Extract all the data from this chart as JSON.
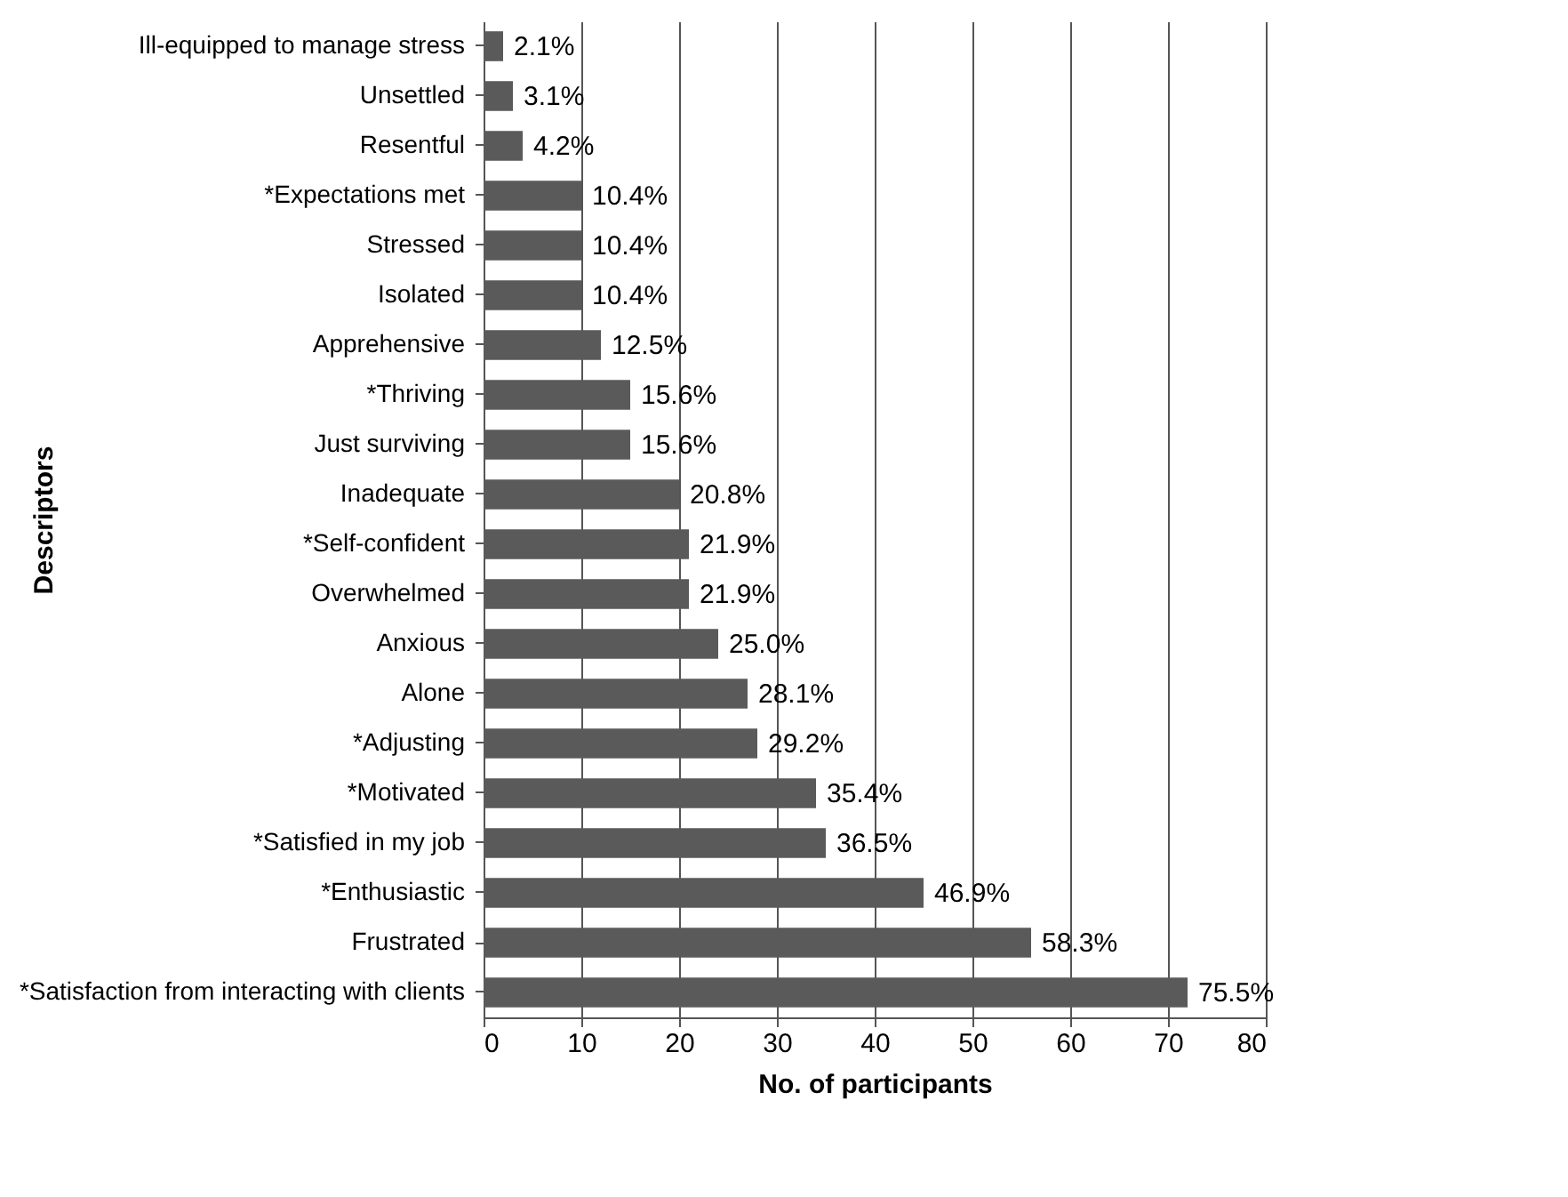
{
  "chart_data": {
    "type": "bar",
    "orientation": "horizontal",
    "xlabel": "No. of participants",
    "ylabel": "Descriptors",
    "categories": [
      "Ill-equipped to manage stress",
      "Unsettled",
      "Resentful",
      "*Expectations met",
      "Stressed",
      "Isolated",
      "Apprehensive",
      "*Thriving",
      "Just surviving",
      "Inadequate",
      "*Self-confident",
      "Overwhelmed",
      "Anxious",
      "Alone",
      "*Adjusting",
      "*Motivated",
      "*Satisfied in my job",
      "*Enthusiastic",
      "Frustrated",
      "*Satisfaction from interacting with clients"
    ],
    "values": [
      2,
      3,
      4,
      10,
      10,
      10,
      12,
      15,
      15,
      20,
      21,
      21,
      24,
      27,
      28,
      34,
      35,
      45,
      56,
      72
    ],
    "annotations": [
      {
        "text": "2.1%",
        "x": 2,
        "y": "Ill-equipped to manage stress"
      },
      {
        "text": "3.1%",
        "x": 3,
        "y": "Unsettled"
      },
      {
        "text": "4.2%",
        "x": 4,
        "y": "Resentful"
      },
      {
        "text": "10.4%",
        "x": 10,
        "y": "*Expectations met"
      },
      {
        "text": "10.4%",
        "x": 10,
        "y": "Stressed"
      },
      {
        "text": "10.4%",
        "x": 10,
        "y": "Isolated"
      },
      {
        "text": "12.5%",
        "x": 12,
        "y": "Apprehensive"
      },
      {
        "text": "15.6%",
        "x": 15,
        "y": "*Thriving"
      },
      {
        "text": "15.6%",
        "x": 15,
        "y": "Just surviving"
      },
      {
        "text": "20.8%",
        "x": 20,
        "y": "Inadequate"
      },
      {
        "text": "21.9%",
        "x": 21,
        "y": "*Self-confident"
      },
      {
        "text": "21.9%",
        "x": 21,
        "y": "Overwhelmed"
      },
      {
        "text": "25.0%",
        "x": 24,
        "y": "Anxious"
      },
      {
        "text": "28.1%",
        "x": 27,
        "y": "Alone"
      },
      {
        "text": "29.2%",
        "x": 28,
        "y": "*Adjusting"
      },
      {
        "text": "35.4%",
        "x": 34,
        "y": "*Motivated"
      },
      {
        "text": "36.5%",
        "x": 35,
        "y": "*Satisfied in my job"
      },
      {
        "text": "46.9%",
        "x": 45,
        "y": "*Enthusiastic"
      },
      {
        "text": "58.3%",
        "x": 56,
        "y": "Frustrated"
      },
      {
        "text": "75.5%",
        "x": 72,
        "y": "*Satisfaction from interacting with clients"
      }
    ],
    "color": "#5a5a5a",
    "xlim": [
      0,
      80
    ],
    "xticks": [
      0,
      10,
      20,
      30,
      40,
      50,
      60,
      70,
      80
    ],
    "grid": "x"
  }
}
